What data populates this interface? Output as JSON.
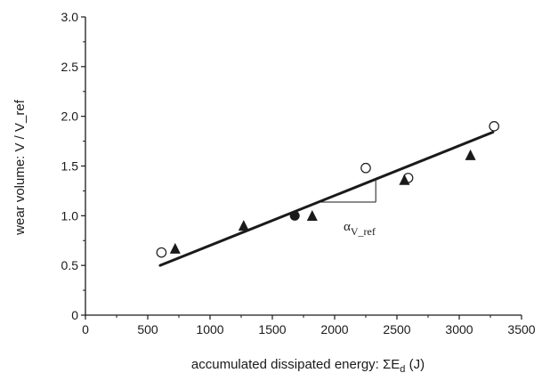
{
  "chart_data": {
    "type": "scatter",
    "title": "",
    "xlabel": "accumulated dissipated energy: ΣEd (J)",
    "xlabel_parts": {
      "prefix": "accumulated dissipated energy: ΣE",
      "sub": "d",
      "suffix": " (J)"
    },
    "ylabel": "wear volume: V / V_ref",
    "xlim": [
      0,
      3500
    ],
    "ylim": [
      0,
      3.0
    ],
    "x_ticks": [
      0,
      500,
      1000,
      1500,
      2000,
      2500,
      3000,
      3500
    ],
    "x_tick_labels": [
      "0",
      "500",
      "1000",
      "1500",
      "2000",
      "2500",
      "3000",
      "3500"
    ],
    "y_ticks": [
      0,
      0.5,
      1.0,
      1.5,
      2.0,
      2.5,
      3.0
    ],
    "y_tick_labels": [
      "0",
      "0.5",
      "1.0",
      "1.5",
      "2.0",
      "2.5",
      "3.0"
    ],
    "grid": false,
    "legend": "none",
    "series": [
      {
        "marker": "open-circle",
        "points": [
          {
            "x": 610,
            "y": 0.63
          },
          {
            "x": 2250,
            "y": 1.48
          },
          {
            "x": 2590,
            "y": 1.38
          },
          {
            "x": 3280,
            "y": 1.9
          }
        ]
      },
      {
        "marker": "filled-triangle",
        "points": [
          {
            "x": 720,
            "y": 0.66
          },
          {
            "x": 1270,
            "y": 0.89
          },
          {
            "x": 1820,
            "y": 0.99
          },
          {
            "x": 2560,
            "y": 1.35
          },
          {
            "x": 3090,
            "y": 1.6
          }
        ]
      },
      {
        "marker": "filled-circle",
        "points": [
          {
            "x": 1680,
            "y": 1.0
          }
        ]
      }
    ],
    "fit_line": {
      "x": [
        600,
        3270
      ],
      "y": [
        0.5,
        1.84
      ]
    },
    "slope_triangle": {
      "x_start": 1870,
      "x_end": 2330
    },
    "annotation": {
      "symbol": "α",
      "sub": "V_ref"
    },
    "colors": {
      "ink": "#1a1a1a",
      "background": "#ffffff"
    }
  }
}
